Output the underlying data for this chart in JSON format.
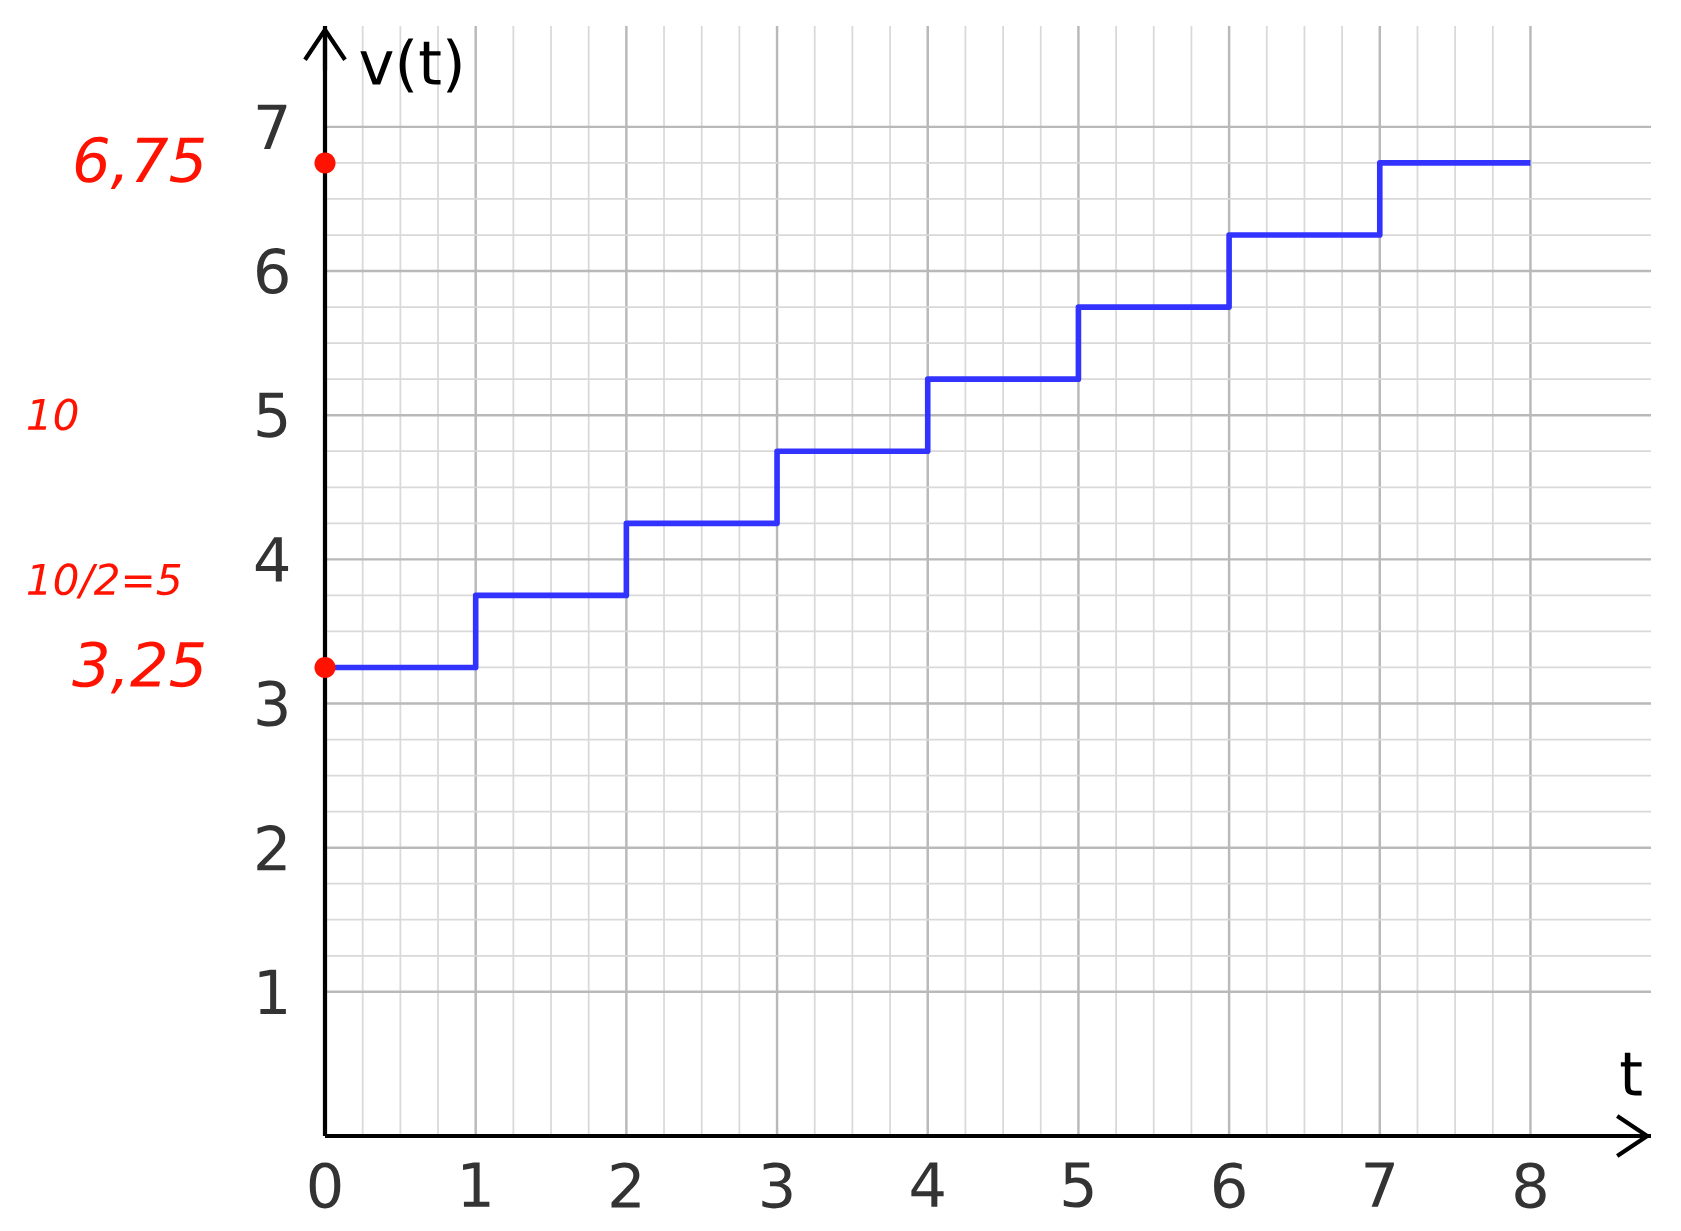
{
  "chart_data": {
    "type": "step",
    "xlabel": "t",
    "ylabel": "v(t)",
    "x": [
      0,
      1,
      2,
      3,
      4,
      5,
      6,
      7,
      8
    ],
    "series": [
      {
        "color": "#3333ff",
        "values": [
          3.25,
          3.75,
          4.25,
          4.75,
          5.25,
          5.75,
          6.25,
          6.75,
          6.75
        ]
      }
    ],
    "xlim": [
      0,
      8.8
    ],
    "ylim": [
      0,
      7.7
    ],
    "xticks": [
      0,
      1,
      2,
      3,
      4,
      5,
      6,
      7,
      8
    ],
    "yticks": [
      1,
      2,
      3,
      4,
      5,
      6,
      7
    ],
    "grid": true,
    "annotations": [
      {
        "text": "6,75",
        "x": 0,
        "y": 6.75
      },
      {
        "text": "3,25",
        "x": 0,
        "y": 3.25
      },
      "10",
      "10/2=5"
    ]
  }
}
